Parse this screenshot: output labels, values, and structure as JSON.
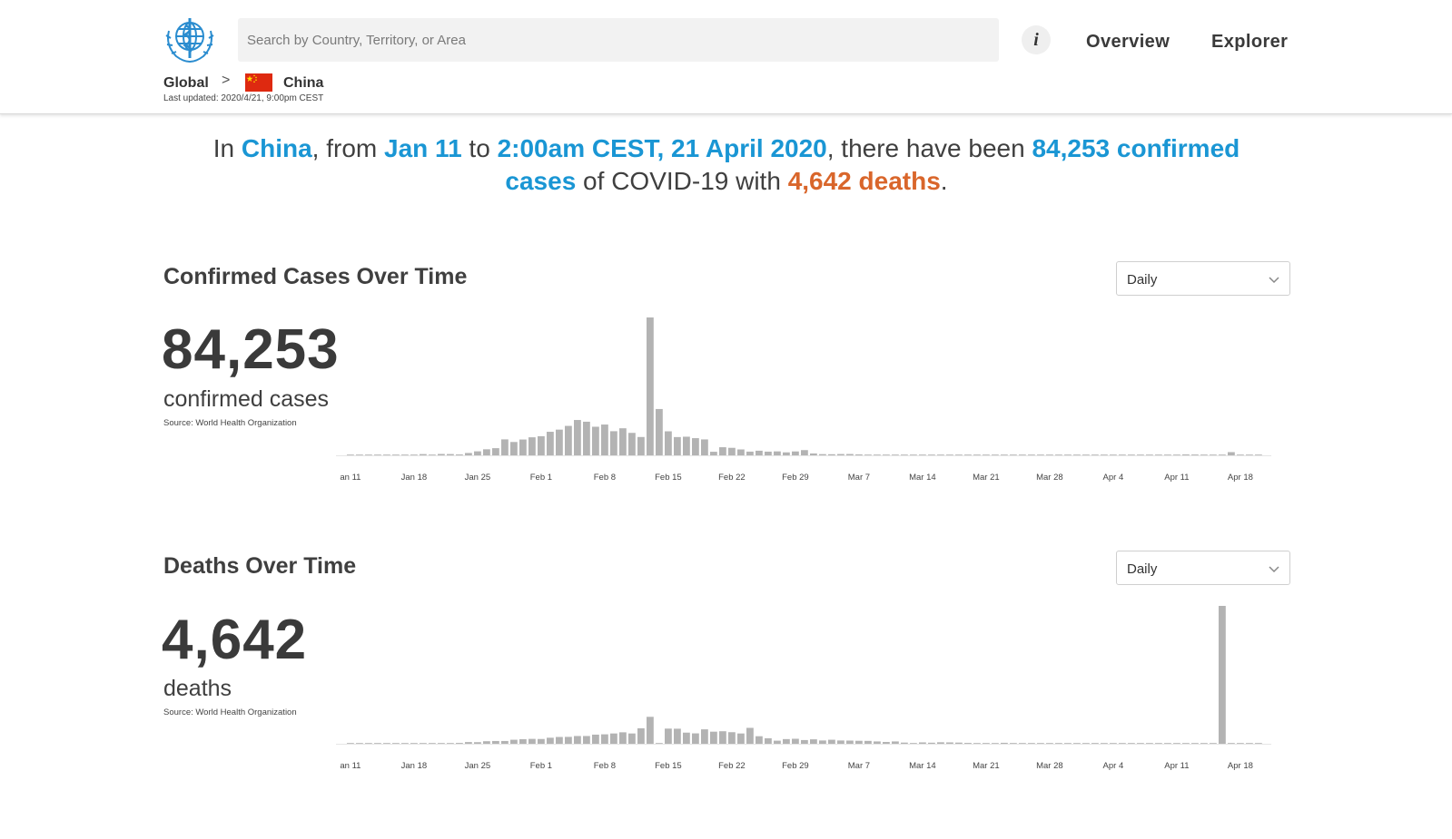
{
  "header": {
    "logo_name": "who-emblem",
    "search_placeholder": "Search by Country, Territory, or Area",
    "info_label": "i",
    "nav": {
      "overview": "Overview",
      "explorer": "Explorer"
    }
  },
  "breadcrumb": {
    "global": "Global",
    "separator": ">",
    "country": "China",
    "flag": "china-flag",
    "last_updated": "Last updated: 2020/4/21, 9:00pm CEST"
  },
  "summary": {
    "p1": "In ",
    "country": "China",
    "p2": ", from ",
    "start": "Jan 11",
    "p3": " to ",
    "end": "2:00am CEST, 21 April 2020",
    "p4": ", there have been ",
    "confirmed": "84,253 confirmed cases",
    "p5": " of COVID-19 with ",
    "deaths": "4,642 deaths",
    "p6": "."
  },
  "colors": {
    "accent_blue": "#1a96d4",
    "accent_orange": "#d9662b",
    "bar": "#b3b3b3",
    "text": "#3f3f3f"
  },
  "confirmed": {
    "title": "Confirmed Cases Over Time",
    "dropdown_value": "Daily",
    "total": "84,253",
    "total_label": "confirmed cases",
    "source": "Source: World Health Organization"
  },
  "deaths": {
    "title": "Deaths Over Time",
    "dropdown_value": "Daily",
    "total": "4,642",
    "total_label": "deaths",
    "source": "Source: World Health Organization"
  },
  "chart_data": [
    {
      "type": "bar",
      "series": [
        {
          "name": "Confirmed Cases",
          "x": [
            "Jan 11",
            "Jan 12",
            "Jan 13",
            "Jan 14",
            "Jan 15",
            "Jan 16",
            "Jan 17",
            "Jan 18",
            "Jan 19",
            "Jan 20",
            "Jan 21",
            "Jan 22",
            "Jan 23",
            "Jan 24",
            "Jan 25",
            "Jan 26",
            "Jan 27",
            "Jan 28",
            "Jan 29",
            "Jan 30",
            "Jan 31",
            "Feb 1",
            "Feb 2",
            "Feb 3",
            "Feb 4",
            "Feb 5",
            "Feb 6",
            "Feb 7",
            "Feb 8",
            "Feb 9",
            "Feb 10",
            "Feb 11",
            "Feb 12",
            "Feb 13",
            "Feb 14",
            "Feb 15",
            "Feb 16",
            "Feb 17",
            "Feb 18",
            "Feb 19",
            "Feb 20",
            "Feb 21",
            "Feb 22",
            "Feb 23",
            "Feb 24",
            "Feb 25",
            "Feb 26",
            "Feb 27",
            "Feb 28",
            "Feb 29",
            "Mar 1",
            "Mar 2",
            "Mar 3",
            "Mar 4",
            "Mar 5",
            "Mar 6",
            "Mar 7",
            "Mar 8",
            "Mar 9",
            "Mar 10",
            "Mar 11",
            "Mar 12",
            "Mar 13",
            "Mar 14",
            "Mar 15",
            "Mar 16",
            "Mar 17",
            "Mar 18",
            "Mar 19",
            "Mar 20",
            "Mar 21",
            "Mar 22",
            "Mar 23",
            "Mar 24",
            "Mar 25",
            "Mar 26",
            "Mar 27",
            "Mar 28",
            "Mar 29",
            "Mar 30",
            "Mar 31",
            "Apr 1",
            "Apr 2",
            "Apr 3",
            "Apr 4",
            "Apr 5",
            "Apr 6",
            "Apr 7",
            "Apr 8",
            "Apr 9",
            "Apr 10",
            "Apr 11",
            "Apr 12",
            "Apr 13",
            "Apr 14",
            "Apr 15",
            "Apr 16",
            "Apr 17",
            "Apr 18",
            "Apr 19",
            "Apr 20"
          ],
          "values": [
            0,
            0,
            0,
            0,
            0,
            0,
            0,
            17,
            136,
            19,
            151,
            140,
            97,
            259,
            441,
            665,
            787,
            1753,
            1466,
            1737,
            1981,
            2099,
            2589,
            2825,
            3235,
            3884,
            3694,
            3143,
            3385,
            2652,
            2973,
            2467,
            2015,
            15152,
            5090,
            2641,
            2008,
            2048,
            1888,
            1749,
            391,
            889,
            823,
            648,
            409,
            508,
            406,
            433,
            327,
            427,
            573,
            206,
            130,
            120,
            143,
            146,
            102,
            46,
            45,
            20,
            24,
            15,
            8,
            11,
            20,
            29,
            13,
            34,
            39,
            41,
            46,
            39,
            78,
            47,
            67,
            55,
            54,
            45,
            31,
            45,
            48,
            36,
            35,
            31,
            30,
            39,
            32,
            62,
            46,
            42,
            47,
            32,
            99,
            89,
            46,
            36,
            22,
            352,
            21,
            8,
            0
          ],
          "ylim": [
            0,
            15152
          ]
        }
      ],
      "xticks": [
        "an 11",
        "Jan 18",
        "Jan 25",
        "Feb 1",
        "Feb 8",
        "Feb 15",
        "Feb 22",
        "Feb 29",
        "Mar 7",
        "Mar 14",
        "Mar 21",
        "Mar 28",
        "Apr 4",
        "Apr 11",
        "Apr 18"
      ],
      "grid": false,
      "legend": "none"
    },
    {
      "type": "bar",
      "series": [
        {
          "name": "Deaths",
          "x": [
            "Jan 11",
            "Jan 12",
            "Jan 13",
            "Jan 14",
            "Jan 15",
            "Jan 16",
            "Jan 17",
            "Jan 18",
            "Jan 19",
            "Jan 20",
            "Jan 21",
            "Jan 22",
            "Jan 23",
            "Jan 24",
            "Jan 25",
            "Jan 26",
            "Jan 27",
            "Jan 28",
            "Jan 29",
            "Jan 30",
            "Jan 31",
            "Feb 1",
            "Feb 2",
            "Feb 3",
            "Feb 4",
            "Feb 5",
            "Feb 6",
            "Feb 7",
            "Feb 8",
            "Feb 9",
            "Feb 10",
            "Feb 11",
            "Feb 12",
            "Feb 13",
            "Feb 14",
            "Feb 15",
            "Feb 16",
            "Feb 17",
            "Feb 18",
            "Feb 19",
            "Feb 20",
            "Feb 21",
            "Feb 22",
            "Feb 23",
            "Feb 24",
            "Feb 25",
            "Feb 26",
            "Feb 27",
            "Feb 28",
            "Feb 29",
            "Mar 1",
            "Mar 2",
            "Mar 3",
            "Mar 4",
            "Mar 5",
            "Mar 6",
            "Mar 7",
            "Mar 8",
            "Mar 9",
            "Mar 10",
            "Mar 11",
            "Mar 12",
            "Mar 13",
            "Mar 14",
            "Mar 15",
            "Mar 16",
            "Mar 17",
            "Mar 18",
            "Mar 19",
            "Mar 20",
            "Mar 21",
            "Mar 22",
            "Mar 23",
            "Mar 24",
            "Mar 25",
            "Mar 26",
            "Mar 27",
            "Mar 28",
            "Mar 29",
            "Mar 30",
            "Mar 31",
            "Apr 1",
            "Apr 2",
            "Apr 3",
            "Apr 4",
            "Apr 5",
            "Apr 6",
            "Apr 7",
            "Apr 8",
            "Apr 9",
            "Apr 10",
            "Apr 11",
            "Apr 12",
            "Apr 13",
            "Apr 14",
            "Apr 15",
            "Apr 16",
            "Apr 17",
            "Apr 18",
            "Apr 19",
            "Apr 20"
          ],
          "values": [
            1,
            0,
            0,
            0,
            1,
            0,
            0,
            0,
            0,
            1,
            3,
            0,
            8,
            16,
            15,
            24,
            26,
            26,
            38,
            43,
            46,
            45,
            57,
            64,
            65,
            73,
            73,
            86,
            89,
            97,
            108,
            97,
            146,
            254,
            5,
            143,
            142,
            105,
            98,
            136,
            114,
            118,
            109,
            97,
            150,
            71,
            52,
            29,
            44,
            47,
            35,
            42,
            31,
            38,
            31,
            30,
            28,
            27,
            22,
            17,
            22,
            11,
            7,
            13,
            10,
            14,
            13,
            11,
            8,
            3,
            7,
            6,
            9,
            7,
            4,
            6,
            5,
            3,
            5,
            4,
            1,
            6,
            7,
            2,
            4,
            3,
            1,
            2,
            3,
            1,
            1,
            1,
            1,
            1,
            0,
            1,
            1300,
            0,
            0,
            0,
            0
          ],
          "ylim": [
            0,
            1300
          ]
        }
      ],
      "xticks": [
        "an 11",
        "Jan 18",
        "Jan 25",
        "Feb 1",
        "Feb 8",
        "Feb 15",
        "Feb 22",
        "Feb 29",
        "Mar 7",
        "Mar 14",
        "Mar 21",
        "Mar 28",
        "Apr 4",
        "Apr 11",
        "Apr 18"
      ],
      "grid": false,
      "legend": "none"
    }
  ]
}
